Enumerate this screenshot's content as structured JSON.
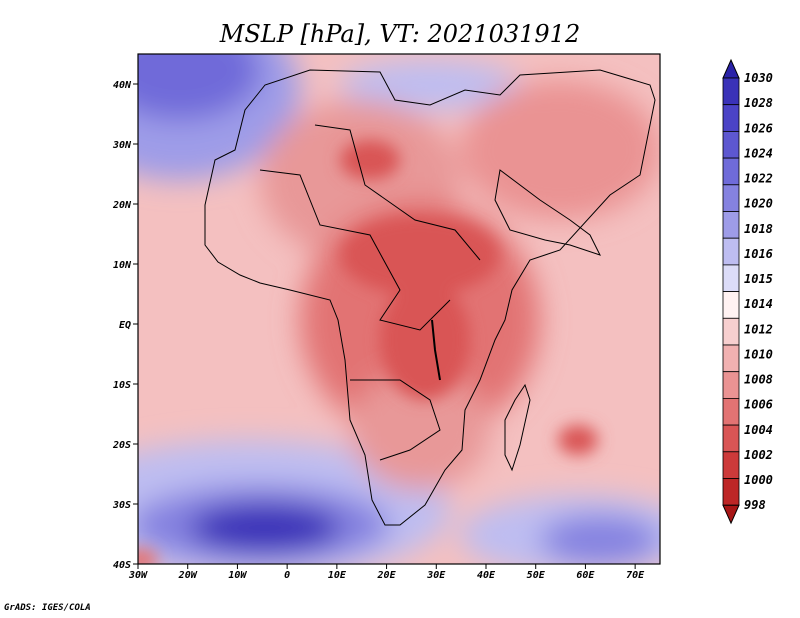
{
  "map": {
    "title": "MSLP [hPa], VT: 2021031912",
    "credit": "GrADS: IGES/COLA",
    "extent": {
      "lon_min": -30,
      "lon_max": 75,
      "lat_min": -40,
      "lat_max": 45
    },
    "lat_ticks": [
      {
        "value": 40,
        "label": "40N"
      },
      {
        "value": 30,
        "label": "30N"
      },
      {
        "value": 20,
        "label": "20N"
      },
      {
        "value": 10,
        "label": "10N"
      },
      {
        "value": 0,
        "label": "EQ"
      },
      {
        "value": -10,
        "label": "10S"
      },
      {
        "value": -20,
        "label": "20S"
      },
      {
        "value": -30,
        "label": "30S"
      },
      {
        "value": -40,
        "label": "40S"
      }
    ],
    "lon_ticks": [
      {
        "value": -30,
        "label": "30W"
      },
      {
        "value": -20,
        "label": "20W"
      },
      {
        "value": -10,
        "label": "10W"
      },
      {
        "value": 0,
        "label": "0"
      },
      {
        "value": 10,
        "label": "10E"
      },
      {
        "value": 20,
        "label": "20E"
      },
      {
        "value": 30,
        "label": "30E"
      },
      {
        "value": 40,
        "label": "40E"
      },
      {
        "value": 50,
        "label": "50E"
      },
      {
        "value": 60,
        "label": "60E"
      },
      {
        "value": 70,
        "label": "70E"
      }
    ]
  },
  "colorbar": {
    "levels": [
      "1030",
      "1028",
      "1026",
      "1024",
      "1022",
      "1020",
      "1018",
      "1016",
      "1015",
      "1014",
      "1012",
      "1010",
      "1008",
      "1006",
      "1004",
      "1002",
      "1000",
      "998"
    ],
    "colors": [
      "#2a22a8",
      "#3a32b8",
      "#4b43c6",
      "#5d57d0",
      "#6f6bd9",
      "#8582e0",
      "#9e9ce8",
      "#bebdf1",
      "#dcdcf8",
      "#fff2f2",
      "#f7cfcf",
      "#f1b1b1",
      "#ea9393",
      "#e27373",
      "#d95555",
      "#cd3a3a",
      "#bd2626",
      "#a81616"
    ]
  },
  "pressure_features": [
    {
      "name": "subtropical-high-south-atlantic",
      "lon": -5,
      "lat": -34,
      "hpa": 1028
    },
    {
      "name": "subtropical-high-azores",
      "lon": -22,
      "lat": 44,
      "hpa": 1026
    },
    {
      "name": "high-mediterranean",
      "lon": 28,
      "lat": 36,
      "hpa": 1018
    },
    {
      "name": "high-south-indian",
      "lon": 62,
      "lat": -38,
      "hpa": 1022
    },
    {
      "name": "heat-low-sudan",
      "lon": 28,
      "lat": 11,
      "hpa": 1004
    },
    {
      "name": "heat-low-east-africa",
      "lon": 29,
      "lat": -3,
      "hpa": 1005
    },
    {
      "name": "low-libya",
      "lon": 16,
      "lat": 28,
      "hpa": 1006
    },
    {
      "name": "tropical-low-indian",
      "lon": 58,
      "lat": -20,
      "hpa": 1004
    }
  ]
}
